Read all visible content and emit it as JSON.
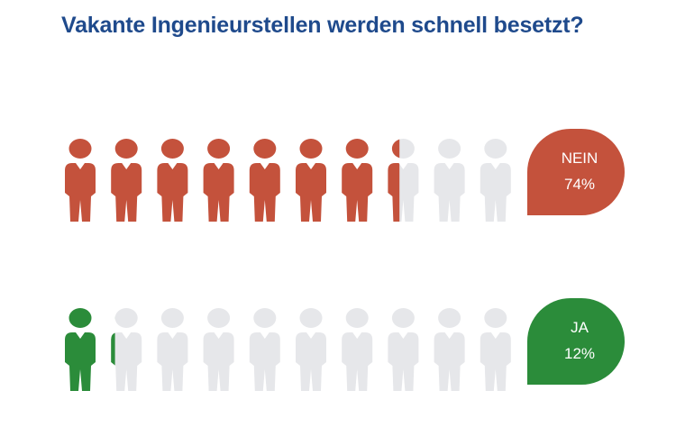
{
  "title": "Vakante Ingenieurstellen werden schnell besetzt?",
  "chart_data": {
    "type": "pictograph",
    "icons_per_row": 10,
    "rows": [
      {
        "label": "NEIN",
        "value_label": "74%",
        "value": 74,
        "color": "#c4523c"
      },
      {
        "label": "JA",
        "value_label": "12%",
        "value": 12,
        "color": "#2b8c3a"
      }
    ],
    "empty_color": "#e6e7ea"
  }
}
